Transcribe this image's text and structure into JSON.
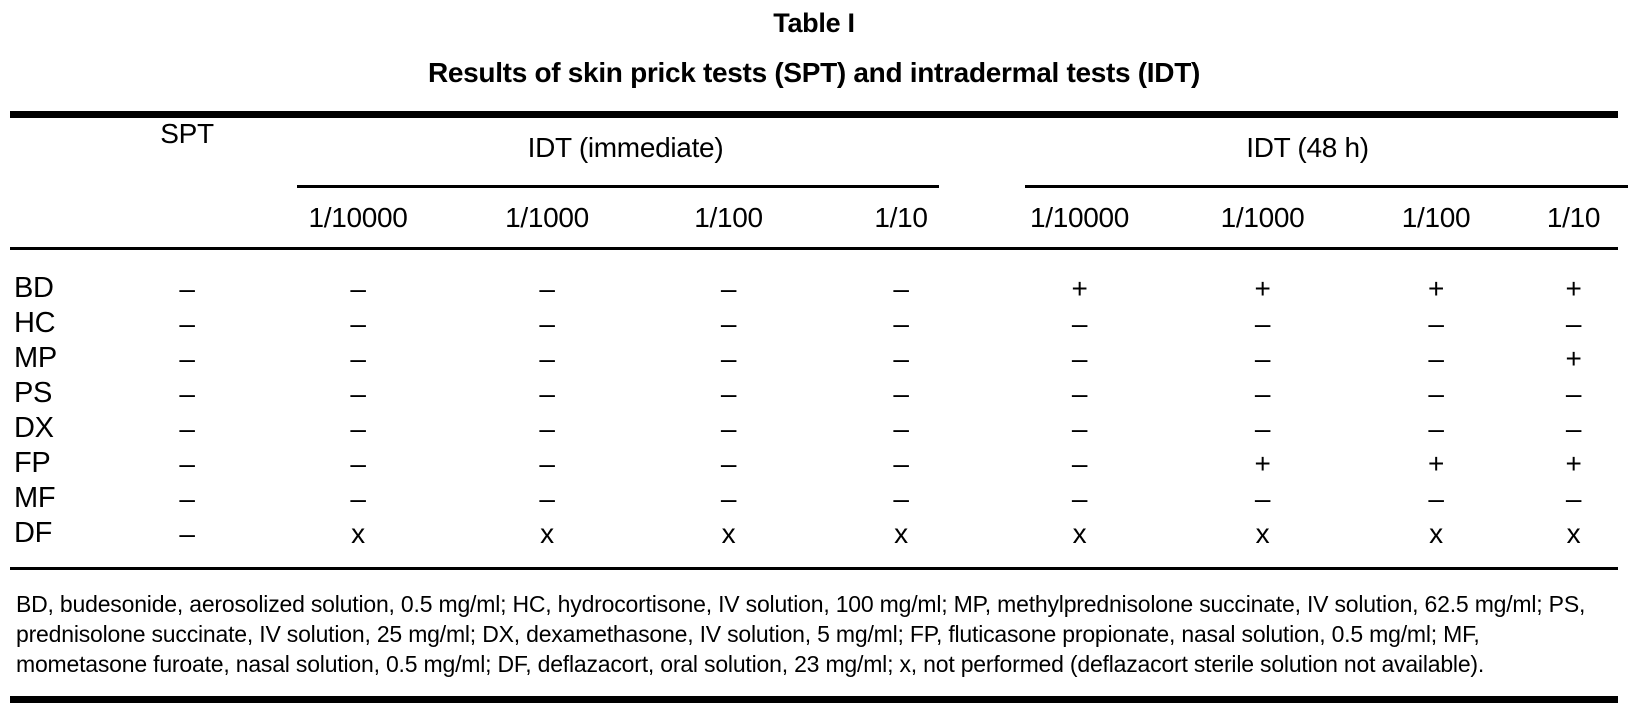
{
  "page": {
    "title": "Table I",
    "subtitle": "Results of skin prick tests (SPT) and intradermal tests (IDT)"
  },
  "table": {
    "spt_header": "SPT",
    "groups": [
      {
        "label": "IDT (immediate)"
      },
      {
        "label": "IDT (48 h)"
      }
    ],
    "dilutions": [
      "1/10000",
      "1/1000",
      "1/100",
      "1/10"
    ],
    "symbols": {
      "negative": "–",
      "positive": "+",
      "not_performed": "x"
    },
    "rows": [
      {
        "label": "BD",
        "spt": "–",
        "idt_immediate": [
          "–",
          "–",
          "–",
          "–"
        ],
        "idt_48h": [
          "+",
          "+",
          "+",
          "+"
        ]
      },
      {
        "label": "HC",
        "spt": "–",
        "idt_immediate": [
          "–",
          "–",
          "–",
          "–"
        ],
        "idt_48h": [
          "–",
          "–",
          "–",
          "–"
        ]
      },
      {
        "label": "MP",
        "spt": "–",
        "idt_immediate": [
          "–",
          "–",
          "–",
          "–"
        ],
        "idt_48h": [
          "–",
          "–",
          "–",
          "+"
        ]
      },
      {
        "label": "PS",
        "spt": "–",
        "idt_immediate": [
          "–",
          "–",
          "–",
          "–"
        ],
        "idt_48h": [
          "–",
          "–",
          "–",
          "–"
        ]
      },
      {
        "label": "DX",
        "spt": "–",
        "idt_immediate": [
          "–",
          "–",
          "–",
          "–"
        ],
        "idt_48h": [
          "–",
          "–",
          "–",
          "–"
        ]
      },
      {
        "label": "FP",
        "spt": "–",
        "idt_immediate": [
          "–",
          "–",
          "–",
          "–"
        ],
        "idt_48h": [
          "–",
          "+",
          "+",
          "+"
        ]
      },
      {
        "label": "MF",
        "spt": "–",
        "idt_immediate": [
          "–",
          "–",
          "–",
          "–"
        ],
        "idt_48h": [
          "–",
          "–",
          "–",
          "–"
        ]
      },
      {
        "label": "DF",
        "spt": "–",
        "idt_immediate": [
          "x",
          "x",
          "x",
          "x"
        ],
        "idt_48h": [
          "x",
          "x",
          "x",
          "x"
        ]
      }
    ]
  },
  "footnote": "BD, budesonide, aerosolized solution, 0.5 mg/ml; HC, hydrocortisone, IV solution, 100 mg/ml; MP, methylprednisolone succinate, IV solution, 62.5 mg/ml; PS, prednisolone succinate, IV solution, 25 mg/ml; DX, dexamethasone, IV solution, 5 mg/ml; FP, fluticasone propionate, nasal solution, 0.5 mg/ml; MF, mometasone furoate, nasal solution, 0.5 mg/ml; DF, deflazacort, oral solution, 23 mg/ml; x, not performed (deflazacort sterile solution not available).",
  "colors": {
    "text": "#000000",
    "background": "#ffffff",
    "rule": "#000000"
  }
}
